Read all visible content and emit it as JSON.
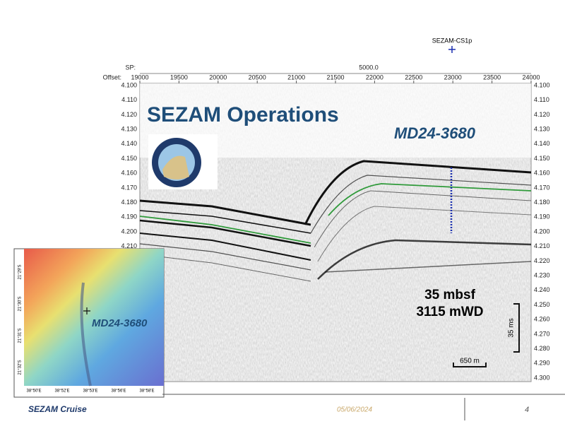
{
  "slide": {
    "site_label": "SEZAM-CS1p",
    "sp_label": "SP:",
    "sp_value": "5000.0",
    "offset_label": "Offset:",
    "offset_ticks": [
      "19000",
      "19500",
      "20000",
      "20500",
      "21000",
      "21500",
      "22000",
      "22500",
      "23000",
      "23500",
      "24000"
    ],
    "time_ticks": [
      "4.100",
      "4.110",
      "4.120",
      "4.130",
      "4.140",
      "4.150",
      "4.160",
      "4.170",
      "4.180",
      "4.190",
      "4.200",
      "4.210",
      "4.220",
      "4.230",
      "4.240",
      "4.250",
      "4.260",
      "4.270",
      "4.280",
      "4.290",
      "4.300"
    ],
    "title": "SEZAM Operations",
    "core_label": "MD24-3680",
    "depth_below_seafloor": "35 mbsf",
    "water_depth": "3115 mWD",
    "vertical_scale": "35 ms",
    "horizontal_scale": "650 m",
    "map": {
      "core_label": "MD24-3680",
      "lat_labels": [
        "21°29'S",
        "21°30'S",
        "21°31'S",
        "21°32'S"
      ],
      "lon_labels": [
        "38°50'E",
        "38°52'E",
        "38°53'E",
        "38°56'E",
        "38°58'E"
      ]
    },
    "footer": {
      "cruise": "SEZAM Cruise",
      "date": "05/06/2024",
      "page": "4"
    }
  }
}
